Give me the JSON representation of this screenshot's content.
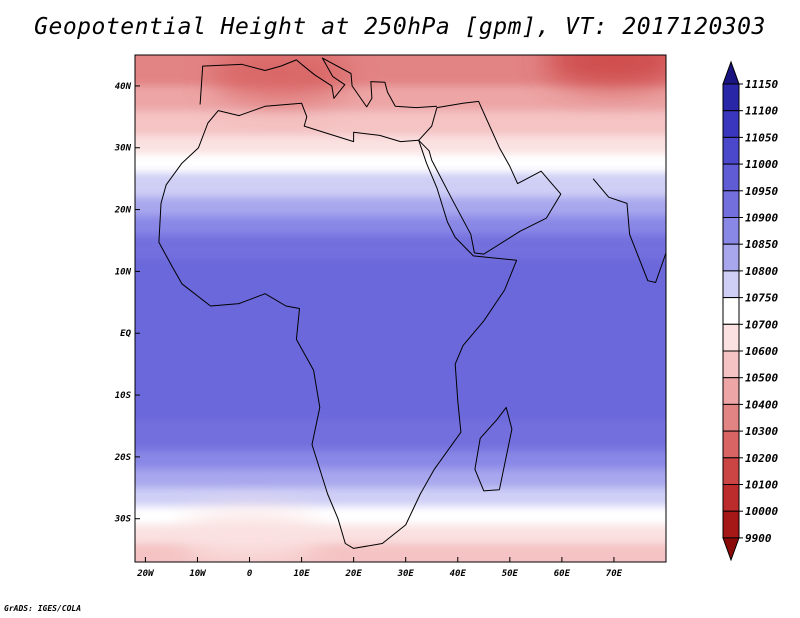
{
  "title": "Geopotential Height at 250hPa [gpm], VT: 2017120303",
  "credit": "GrADS: IGES/COLA",
  "lat_labels": [
    "40N",
    "30N",
    "20N",
    "10N",
    "EQ",
    "10S",
    "20S",
    "30S"
  ],
  "lat_values": [
    40,
    30,
    20,
    10,
    0,
    -10,
    -20,
    -30
  ],
  "lon_labels": [
    "20W",
    "10W",
    "0",
    "10E",
    "20E",
    "30E",
    "40E",
    "50E",
    "60E",
    "70E"
  ],
  "lon_values": [
    -20,
    -10,
    0,
    10,
    20,
    30,
    40,
    50,
    60,
    70
  ],
  "map_extent": {
    "lon_min": -22,
    "lon_max": 80,
    "lat_min": -37,
    "lat_max": 45
  },
  "colorbar": {
    "levels": [
      "11150",
      "11100",
      "11050",
      "11000",
      "10950",
      "10900",
      "10850",
      "10800",
      "10750",
      "10700",
      "10600",
      "10500",
      "10400",
      "10300",
      "10200",
      "10100",
      "10000",
      "9900"
    ],
    "colors": [
      "#1a1480",
      "#2a26a8",
      "#3a36bd",
      "#4c48cc",
      "#5f5cd6",
      "#7370de",
      "#8a88e6",
      "#a8a7ee",
      "#cfcff6",
      "#ffffff",
      "#fbe1e1",
      "#f5c3c3",
      "#eda5a5",
      "#e38484",
      "#d86464",
      "#cc4545",
      "#bd2c2c",
      "#a61818",
      "#8a0a0a"
    ]
  },
  "field_bands": [
    {
      "lat_from": 45,
      "lat_to": 40,
      "color": "#e38484"
    },
    {
      "lat_from": 40,
      "lat_to": 36,
      "color": "#eda5a5"
    },
    {
      "lat_from": 36,
      "lat_to": 32,
      "color": "#f5c3c3"
    },
    {
      "lat_from": 32,
      "lat_to": 29,
      "color": "#fbe1e1"
    },
    {
      "lat_from": 29,
      "lat_to": 26,
      "color": "#ffffff"
    },
    {
      "lat_from": 26,
      "lat_to": 22,
      "color": "#cfcff6"
    },
    {
      "lat_from": 22,
      "lat_to": 19,
      "color": "#a8a7ee"
    },
    {
      "lat_from": 19,
      "lat_to": 16,
      "color": "#8a88e6"
    },
    {
      "lat_from": 16,
      "lat_to": 12,
      "color": "#7370de"
    },
    {
      "lat_from": 12,
      "lat_to": -14,
      "color": "#6a67da"
    },
    {
      "lat_from": -14,
      "lat_to": -19,
      "color": "#7370de"
    },
    {
      "lat_from": -19,
      "lat_to": -22,
      "color": "#8a88e6"
    },
    {
      "lat_from": -22,
      "lat_to": -25,
      "color": "#a8a7ee"
    },
    {
      "lat_from": -25,
      "lat_to": -28,
      "color": "#cfcff6"
    },
    {
      "lat_from": -28,
      "lat_to": -31,
      "color": "#ffffff"
    },
    {
      "lat_from": -31,
      "lat_to": -34,
      "color": "#fbe1e1"
    },
    {
      "lat_from": -34,
      "lat_to": -37,
      "color": "#f5c3c3"
    }
  ],
  "field_highs": [
    {
      "name": "europe-low",
      "lon": 6,
      "lat": 42,
      "color": "#d86464"
    },
    {
      "name": "asia-low",
      "lon": 70,
      "lat": 44,
      "color": "#cc4545"
    },
    {
      "name": "south-atlantic-ridge",
      "lon": 0,
      "lat": -33,
      "color": "#fbe1e1"
    }
  ],
  "coastline": [
    [
      -17,
      21
    ],
    [
      -16,
      24
    ],
    [
      -13,
      27.5
    ],
    [
      -9.8,
      30
    ],
    [
      -8,
      34
    ],
    [
      -6,
      36
    ],
    [
      -2,
      35.2
    ],
    [
      3,
      36.7
    ],
    [
      10,
      37.2
    ],
    [
      11,
      35
    ],
    [
      10.5,
      33.5
    ],
    [
      15,
      32.3
    ],
    [
      20,
      31
    ],
    [
      20,
      32.5
    ],
    [
      25,
      32
    ],
    [
      29,
      31
    ],
    [
      32.5,
      31.2
    ],
    [
      34,
      27.5
    ],
    [
      36,
      23.5
    ],
    [
      38,
      18
    ],
    [
      39.5,
      15.5
    ],
    [
      43,
      12.5
    ],
    [
      51.3,
      11.8
    ],
    [
      49,
      7
    ],
    [
      45,
      2
    ],
    [
      41,
      -2
    ],
    [
      39.5,
      -5
    ],
    [
      40,
      -11
    ],
    [
      40.6,
      -16
    ],
    [
      35.5,
      -22
    ],
    [
      32.8,
      -26
    ],
    [
      30,
      -31
    ],
    [
      25.5,
      -34
    ],
    [
      20,
      -34.8
    ],
    [
      18.4,
      -34
    ],
    [
      17,
      -30
    ],
    [
      15,
      -26
    ],
    [
      12,
      -18
    ],
    [
      13.5,
      -12
    ],
    [
      12.3,
      -6
    ],
    [
      9,
      -1
    ],
    [
      9.6,
      4
    ],
    [
      7,
      4.4
    ],
    [
      3,
      6.4
    ],
    [
      -2,
      4.8
    ],
    [
      -7.5,
      4.4
    ],
    [
      -13,
      8
    ],
    [
      -15,
      11
    ],
    [
      -17.4,
      14.7
    ],
    [
      -17,
      21
    ]
  ],
  "madagascar": [
    [
      49.3,
      -12
    ],
    [
      50.4,
      -15.5
    ],
    [
      48,
      -25.3
    ],
    [
      45,
      -25.5
    ],
    [
      43.3,
      -22
    ],
    [
      44.3,
      -17
    ],
    [
      47.5,
      -14
    ],
    [
      49.3,
      -12
    ]
  ],
  "arabia": [
    [
      32.5,
      31.2
    ],
    [
      35,
      33.5
    ],
    [
      36,
      36.5
    ],
    [
      41,
      37.2
    ],
    [
      44,
      37.5
    ],
    [
      48,
      30
    ],
    [
      50,
      27
    ],
    [
      51.5,
      24.2
    ],
    [
      56,
      26.2
    ],
    [
      59.8,
      22.5
    ],
    [
      57,
      18.6
    ],
    [
      52,
      16.5
    ],
    [
      45,
      12.8
    ],
    [
      43.2,
      13
    ],
    [
      42.5,
      16
    ],
    [
      39,
      21.5
    ],
    [
      35,
      28
    ],
    [
      34.5,
      29.5
    ],
    [
      32.5,
      31.2
    ]
  ],
  "india": [
    [
      66,
      25
    ],
    [
      69,
      22
    ],
    [
      72.5,
      21
    ],
    [
      73,
      16
    ],
    [
      76.5,
      8.5
    ],
    [
      78,
      8.2
    ],
    [
      80,
      13
    ]
  ],
  "europe": [
    [
      -9.5,
      37
    ],
    [
      -9,
      43.2
    ],
    [
      -1.5,
      43.5
    ],
    [
      3,
      42.5
    ],
    [
      6,
      43.2
    ],
    [
      9,
      44.2
    ],
    [
      10,
      43.5
    ],
    [
      12.5,
      41.8
    ],
    [
      15.8,
      40
    ],
    [
      16.2,
      38
    ],
    [
      18.3,
      40.2
    ],
    [
      16,
      41.5
    ],
    [
      14,
      44.5
    ],
    [
      19.5,
      42
    ],
    [
      19.7,
      40
    ],
    [
      22.5,
      36.6
    ],
    [
      23.5,
      38
    ],
    [
      23.3,
      40.7
    ],
    [
      26,
      40.6
    ],
    [
      26.5,
      39
    ],
    [
      28,
      36.7
    ],
    [
      32,
      36.5
    ],
    [
      36,
      36.7
    ]
  ]
}
